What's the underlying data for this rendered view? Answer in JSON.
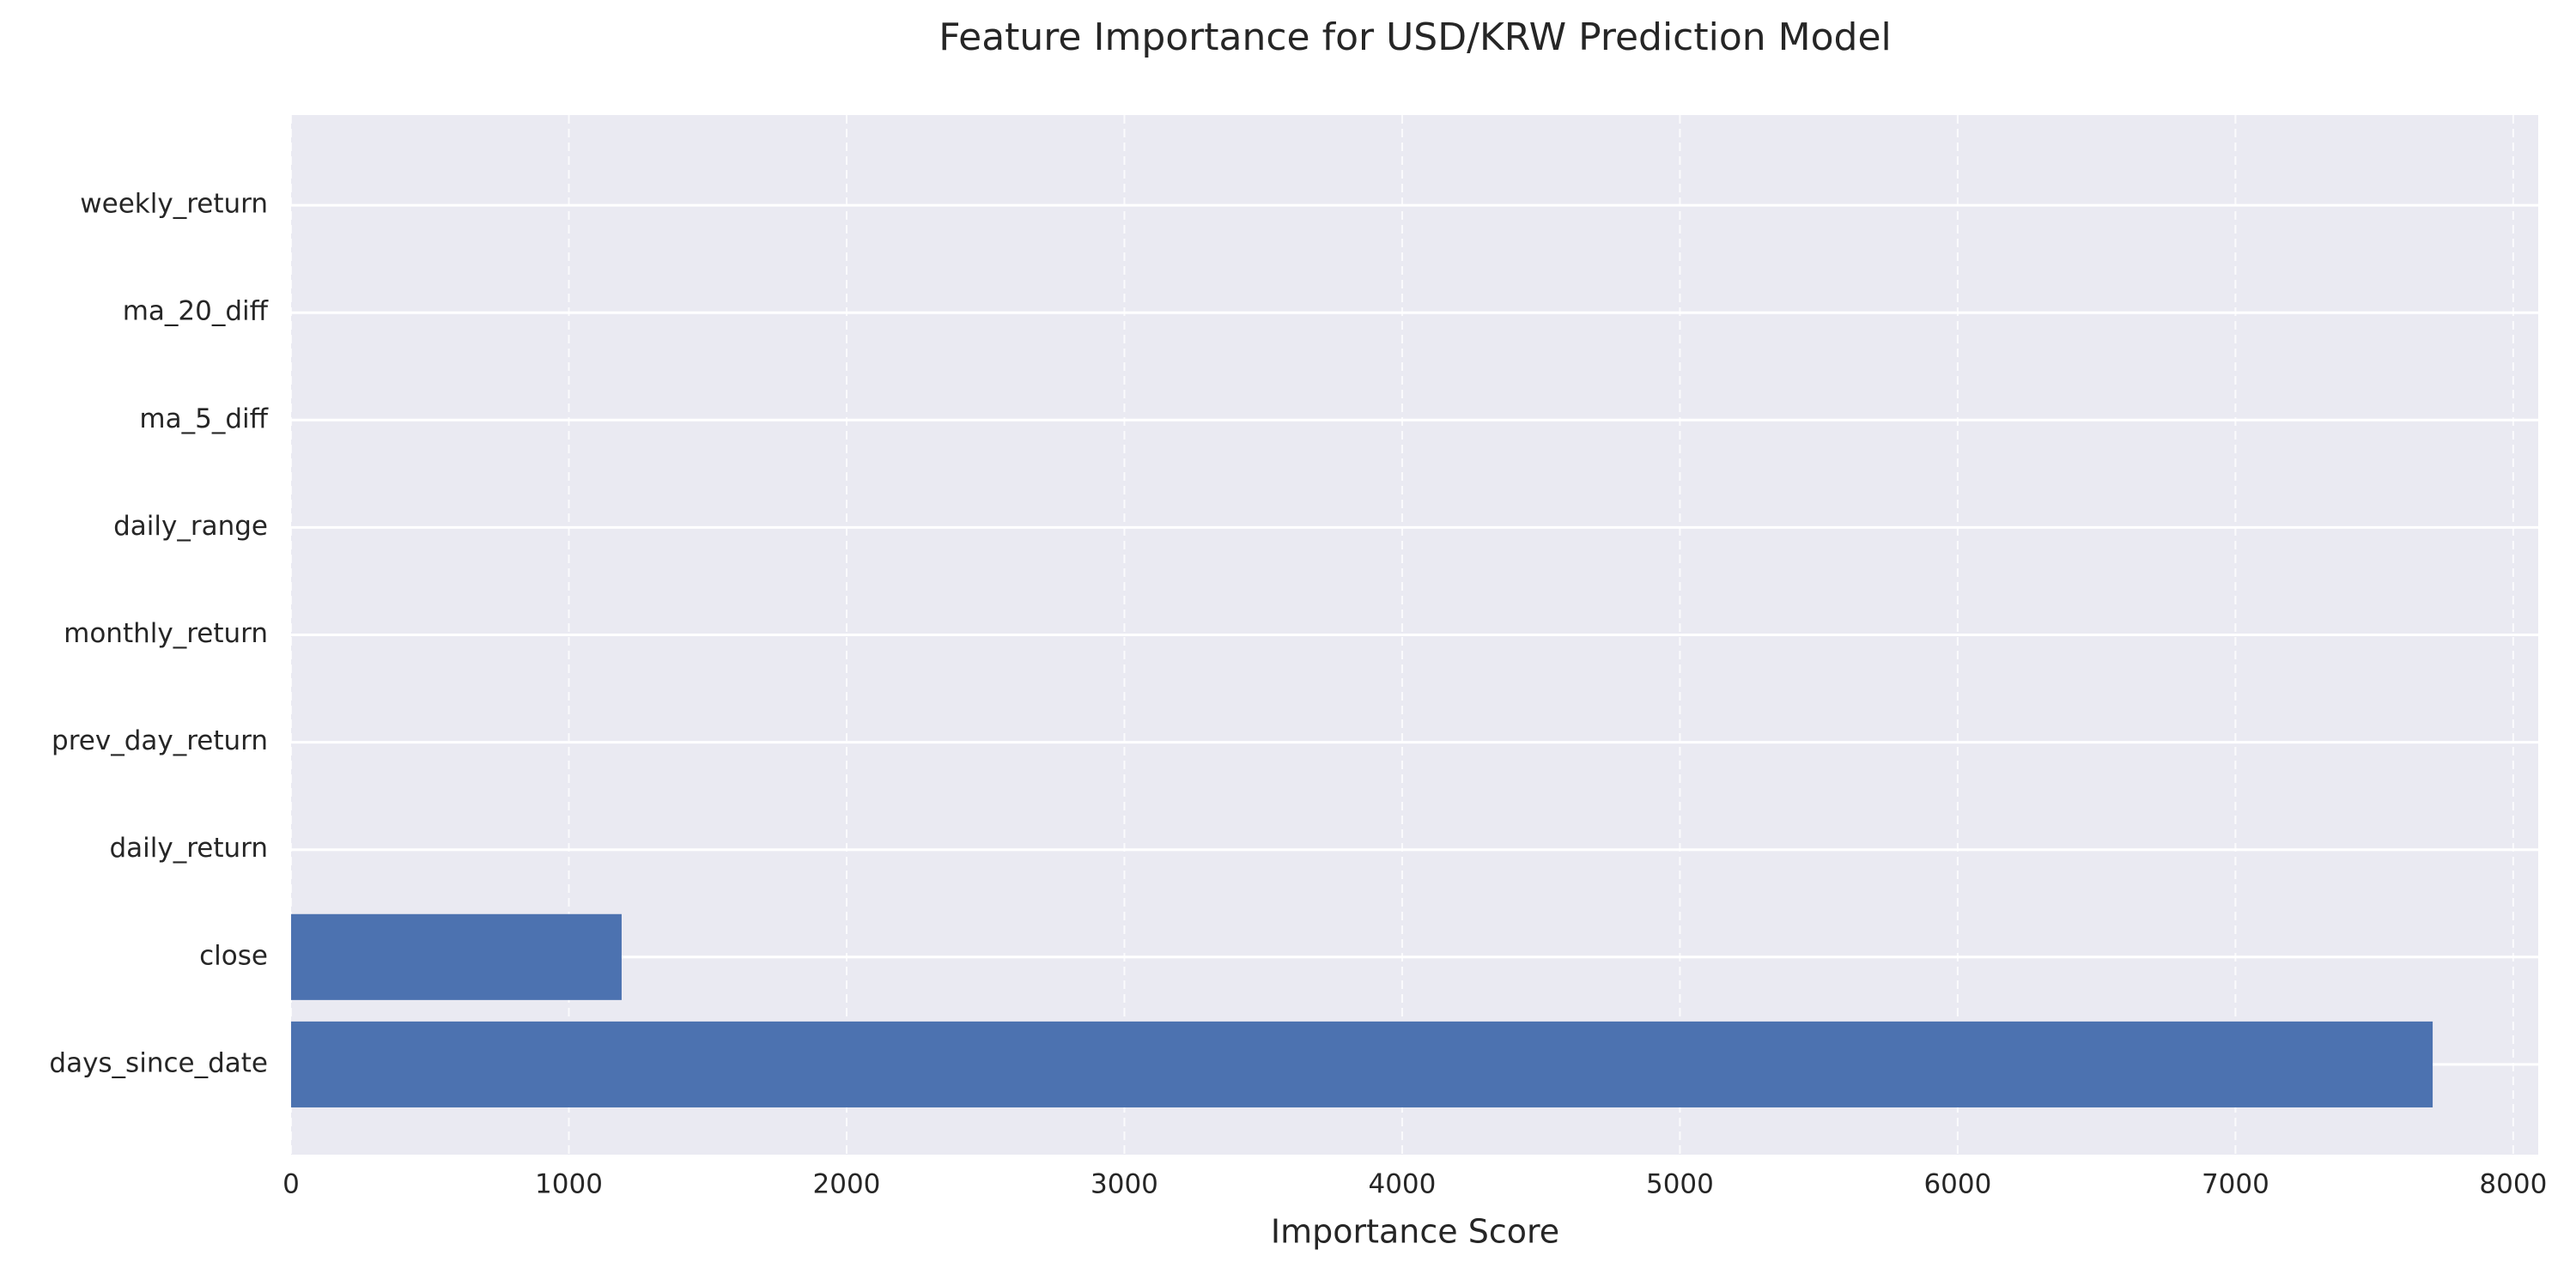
{
  "chart_data": {
    "type": "barh",
    "title": "Feature Importance for USD/KRW Prediction Model",
    "xlabel": "Importance Score",
    "categories": [
      "days_since_date",
      "close",
      "daily_return",
      "prev_day_return",
      "monthly_return",
      "daily_range",
      "ma_5_diff",
      "ma_20_diff",
      "weekly_return"
    ],
    "values": [
      7710,
      1190,
      0,
      0,
      0,
      0,
      0,
      0,
      0
    ],
    "color": "#4c72b0",
    "xlim": [
      0,
      8090
    ],
    "xticks": [
      0,
      1000,
      2000,
      3000,
      4000,
      5000,
      6000,
      7000,
      8000
    ],
    "grid": true
  }
}
